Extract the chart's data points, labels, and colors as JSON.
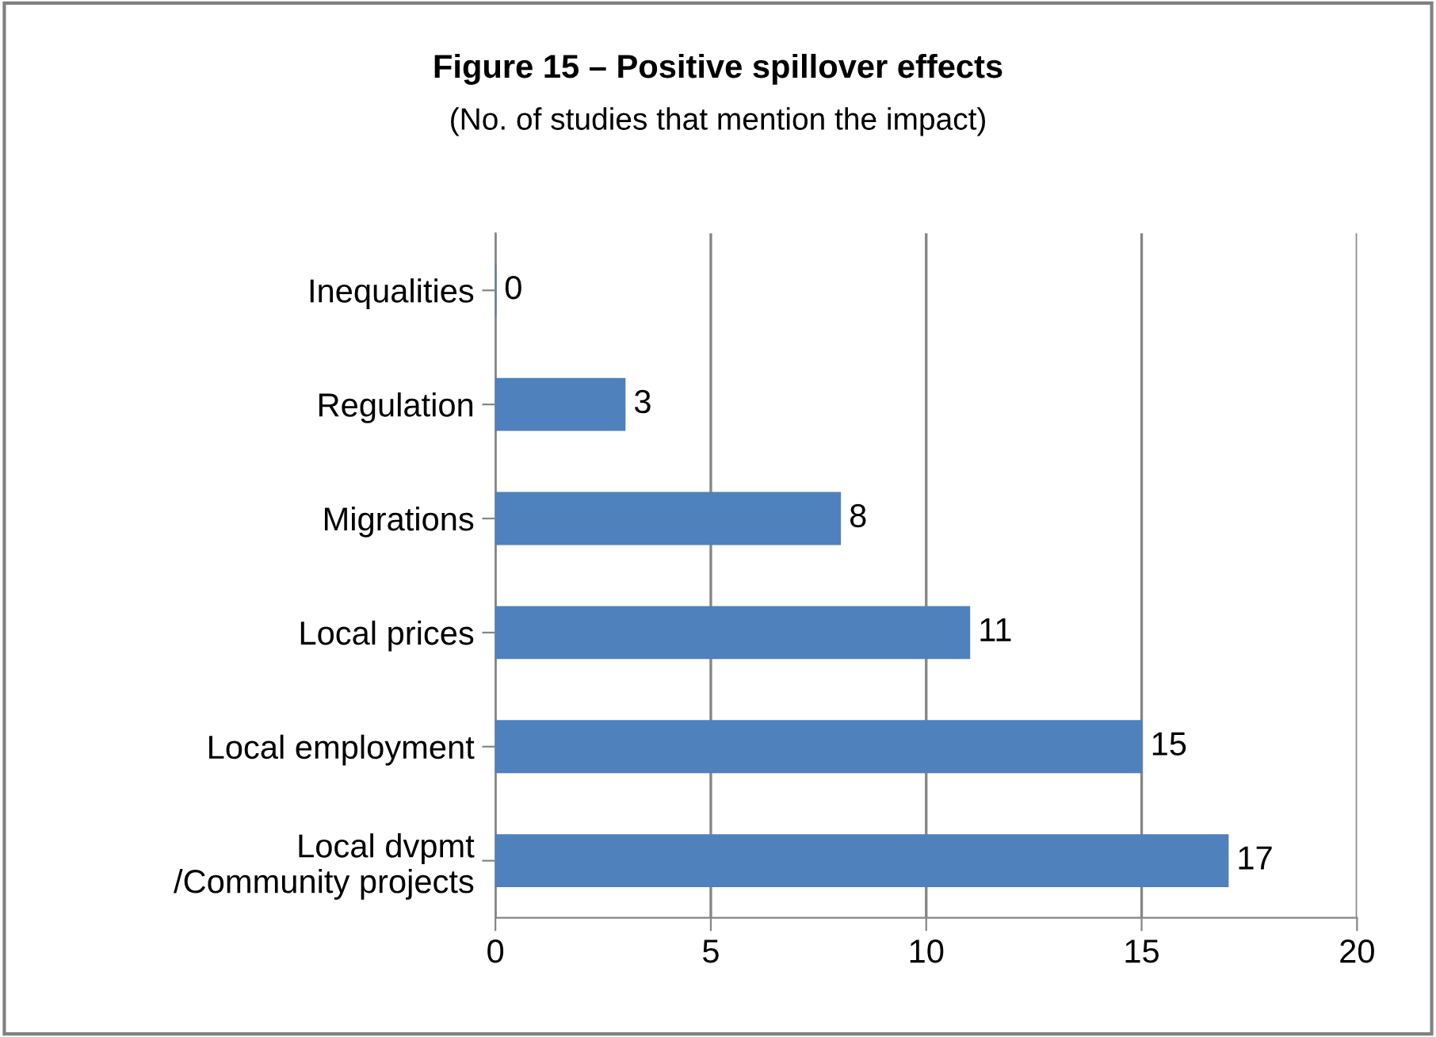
{
  "chart_data": {
    "type": "bar",
    "orientation": "horizontal",
    "title": "Figure 15 – Positive spillover effects",
    "subtitle": "(No. of studies that mention the impact)",
    "categories": [
      "Inequalities",
      "Regulation",
      "Migrations",
      "Local prices",
      "Local employment",
      "Local dvpmt\n/Community projects"
    ],
    "values": [
      0,
      3,
      8,
      11,
      15,
      17
    ],
    "color": "#4f81bd",
    "xlim": [
      0,
      20
    ],
    "xticks": [
      0,
      5,
      10,
      15,
      20
    ],
    "grid": "x",
    "data_labels": true
  }
}
